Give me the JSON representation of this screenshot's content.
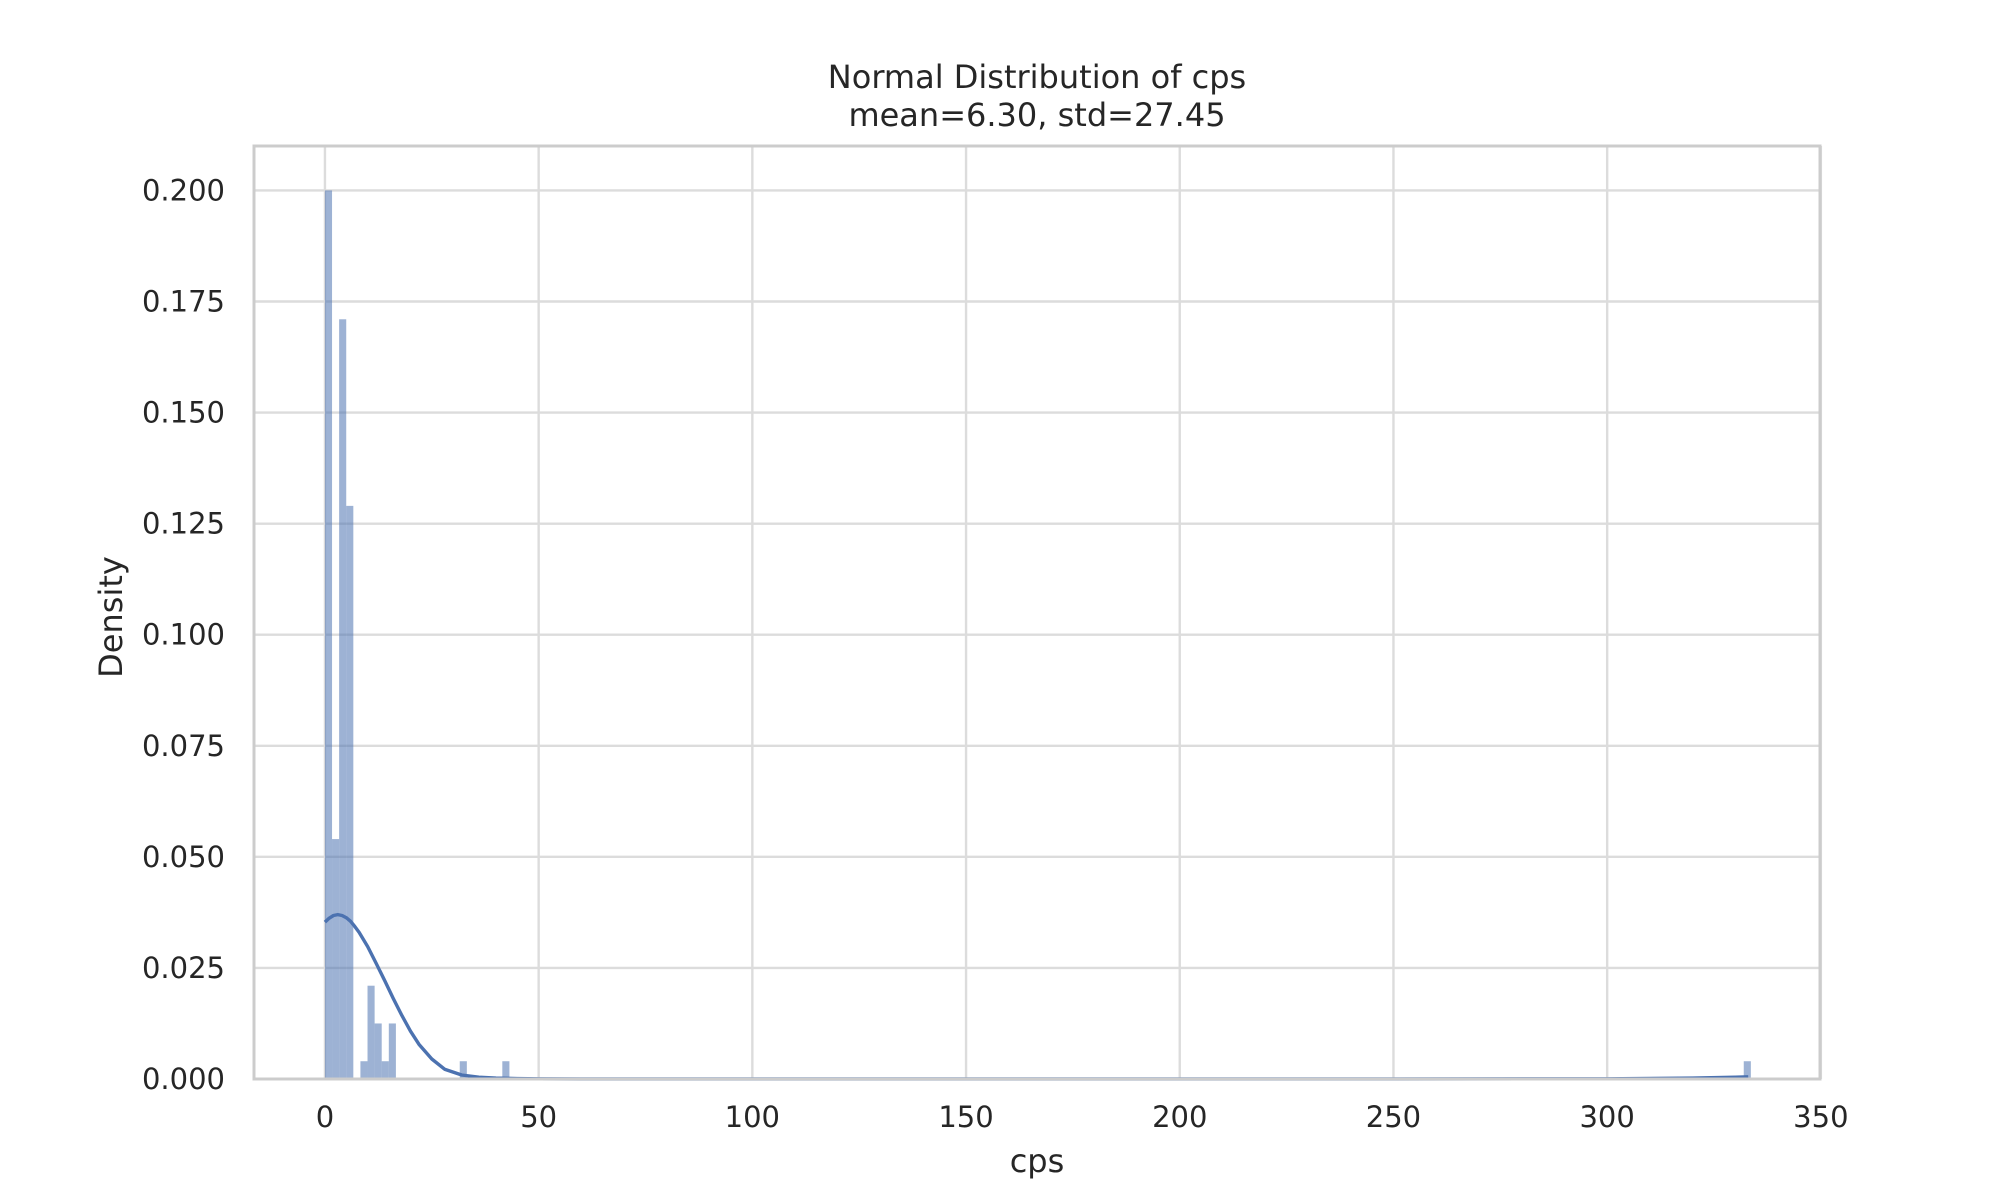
{
  "chart_data": {
    "type": "bar",
    "title": "Normal Distribution of cps",
    "subtitle": "mean=6.30, std=27.45",
    "xlabel": "cps",
    "ylabel": "Density",
    "xlim": [
      -16.6,
      349.8
    ],
    "ylim": [
      0,
      0.21
    ],
    "xticks": [
      0,
      50,
      100,
      150,
      200,
      250,
      300,
      350
    ],
    "xtick_labels": [
      "0",
      "50",
      "100",
      "150",
      "200",
      "250",
      "300",
      "350"
    ],
    "yticks": [
      0,
      0.025,
      0.05,
      0.075,
      0.1,
      0.125,
      0.15,
      0.175,
      0.2
    ],
    "ytick_labels": [
      "0.000",
      "0.025",
      "0.050",
      "0.075",
      "0.100",
      "0.125",
      "0.150",
      "0.175",
      "0.200"
    ],
    "grid": true,
    "colors": {
      "bars": "#4c72b0",
      "kde": "#4c72b0",
      "grid": "#dcdcdc",
      "frame": "#cccccc"
    },
    "histogram": {
      "bin_width": 1.66,
      "bins": [
        {
          "x0": 0.0,
          "value": 0.2
        },
        {
          "x0": 1.66,
          "value": 0.054
        },
        {
          "x0": 3.32,
          "value": 0.171
        },
        {
          "x0": 4.98,
          "value": 0.129
        },
        {
          "x0": 8.3,
          "value": 0.004
        },
        {
          "x0": 9.96,
          "value": 0.021
        },
        {
          "x0": 11.62,
          "value": 0.0125
        },
        {
          "x0": 13.28,
          "value": 0.004
        },
        {
          "x0": 14.94,
          "value": 0.0125
        },
        {
          "x0": 31.54,
          "value": 0.004
        },
        {
          "x0": 41.5,
          "value": 0.004
        },
        {
          "x0": 331.96,
          "value": 0.004
        }
      ]
    },
    "kde": {
      "x": [
        0,
        1,
        2,
        3,
        4,
        5,
        6,
        7,
        8,
        10,
        12,
        14,
        16,
        18,
        20,
        22,
        25,
        28,
        32,
        36,
        40,
        45,
        50,
        60,
        80,
        100,
        150,
        200,
        250,
        300,
        320,
        330,
        333
      ],
      "y": [
        0.0353,
        0.0362,
        0.0368,
        0.037,
        0.0368,
        0.0363,
        0.0355,
        0.0343,
        0.033,
        0.0298,
        0.026,
        0.0221,
        0.0181,
        0.0143,
        0.0108,
        0.0078,
        0.0045,
        0.0022,
        0.0009,
        0.0004,
        0.0002,
        0.0001,
        5e-05,
        2e-05,
        1e-05,
        1e-05,
        1e-05,
        1e-05,
        1e-05,
        5e-05,
        0.0002,
        0.0004,
        0.0005
      ]
    }
  }
}
